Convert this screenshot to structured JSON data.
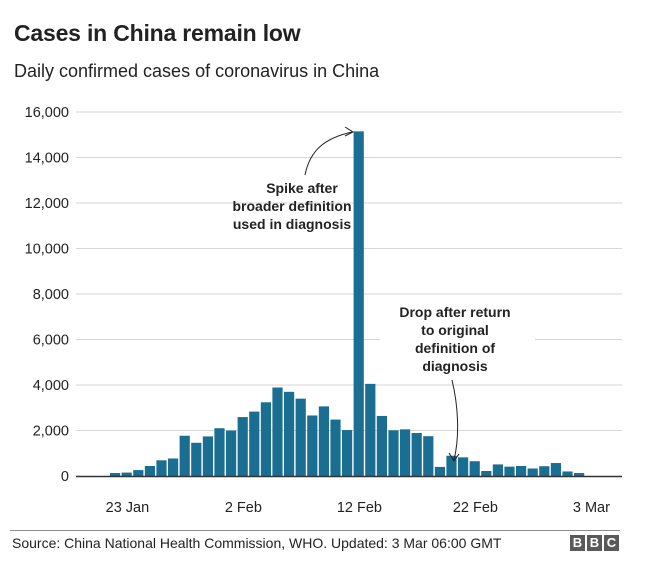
{
  "header": {
    "title": "Cases in China remain low",
    "subtitle": "Daily confirmed cases of coronavirus in China"
  },
  "footer": {
    "source": "Source: China National Health Commission, WHO. Updated: 3 Mar 06:00 GMT",
    "logo_letters": [
      "B",
      "B",
      "C"
    ]
  },
  "colors": {
    "bar": "#1a6e92",
    "grid": "#d6d6d6",
    "axis": "#333333"
  },
  "chart_data": {
    "type": "bar",
    "title": "Cases in China remain low",
    "subtitle": "Daily confirmed cases of coronavirus in China",
    "xlabel": "",
    "ylabel": "",
    "ylim": [
      0,
      16000
    ],
    "grid": true,
    "y_ticks": [
      0,
      2000,
      4000,
      6000,
      8000,
      10000,
      12000,
      14000,
      16000
    ],
    "y_tick_labels": [
      "0",
      "2,000",
      "4,000",
      "6,000",
      "8,000",
      "10,000",
      "12,000",
      "14,000",
      "16,000"
    ],
    "x_tick_labels": [
      {
        "label": "23 Jan",
        "index": 1
      },
      {
        "label": "2 Feb",
        "index": 11
      },
      {
        "label": "12 Feb",
        "index": 21
      },
      {
        "label": "22 Feb",
        "index": 31
      },
      {
        "label": "3 Mar",
        "index": 41
      }
    ],
    "categories": [
      "22 Jan",
      "23 Jan",
      "24 Jan",
      "25 Jan",
      "26 Jan",
      "27 Jan",
      "28 Jan",
      "29 Jan",
      "30 Jan",
      "31 Jan",
      "1 Feb",
      "2 Feb",
      "3 Feb",
      "4 Feb",
      "5 Feb",
      "6 Feb",
      "7 Feb",
      "8 Feb",
      "9 Feb",
      "10 Feb",
      "11 Feb",
      "12 Feb",
      "13 Feb",
      "14 Feb",
      "15 Feb",
      "16 Feb",
      "17 Feb",
      "18 Feb",
      "19 Feb",
      "20 Feb",
      "21 Feb",
      "22 Feb",
      "23 Feb",
      "24 Feb",
      "25 Feb",
      "26 Feb",
      "27 Feb",
      "28 Feb",
      "29 Feb",
      "1 Mar",
      "2 Mar",
      "3 Mar"
    ],
    "values": [
      130,
      150,
      260,
      440,
      690,
      770,
      1770,
      1460,
      1740,
      2100,
      2000,
      2590,
      2830,
      3240,
      3890,
      3700,
      3400,
      2660,
      3060,
      2480,
      2020,
      15150,
      4050,
      2640,
      2010,
      2050,
      1890,
      1750,
      400,
      890,
      820,
      650,
      220,
      510,
      410,
      440,
      330,
      430,
      570,
      200,
      130,
      0
    ],
    "annotations": [
      {
        "text_lines": [
          "Spike after",
          "broader definition",
          "used in diagnosis"
        ],
        "target": "13 Feb"
      },
      {
        "text_lines": [
          "Drop after return",
          "to original",
          "definition of",
          "diagnosis"
        ],
        "target": "20 Feb"
      }
    ]
  }
}
